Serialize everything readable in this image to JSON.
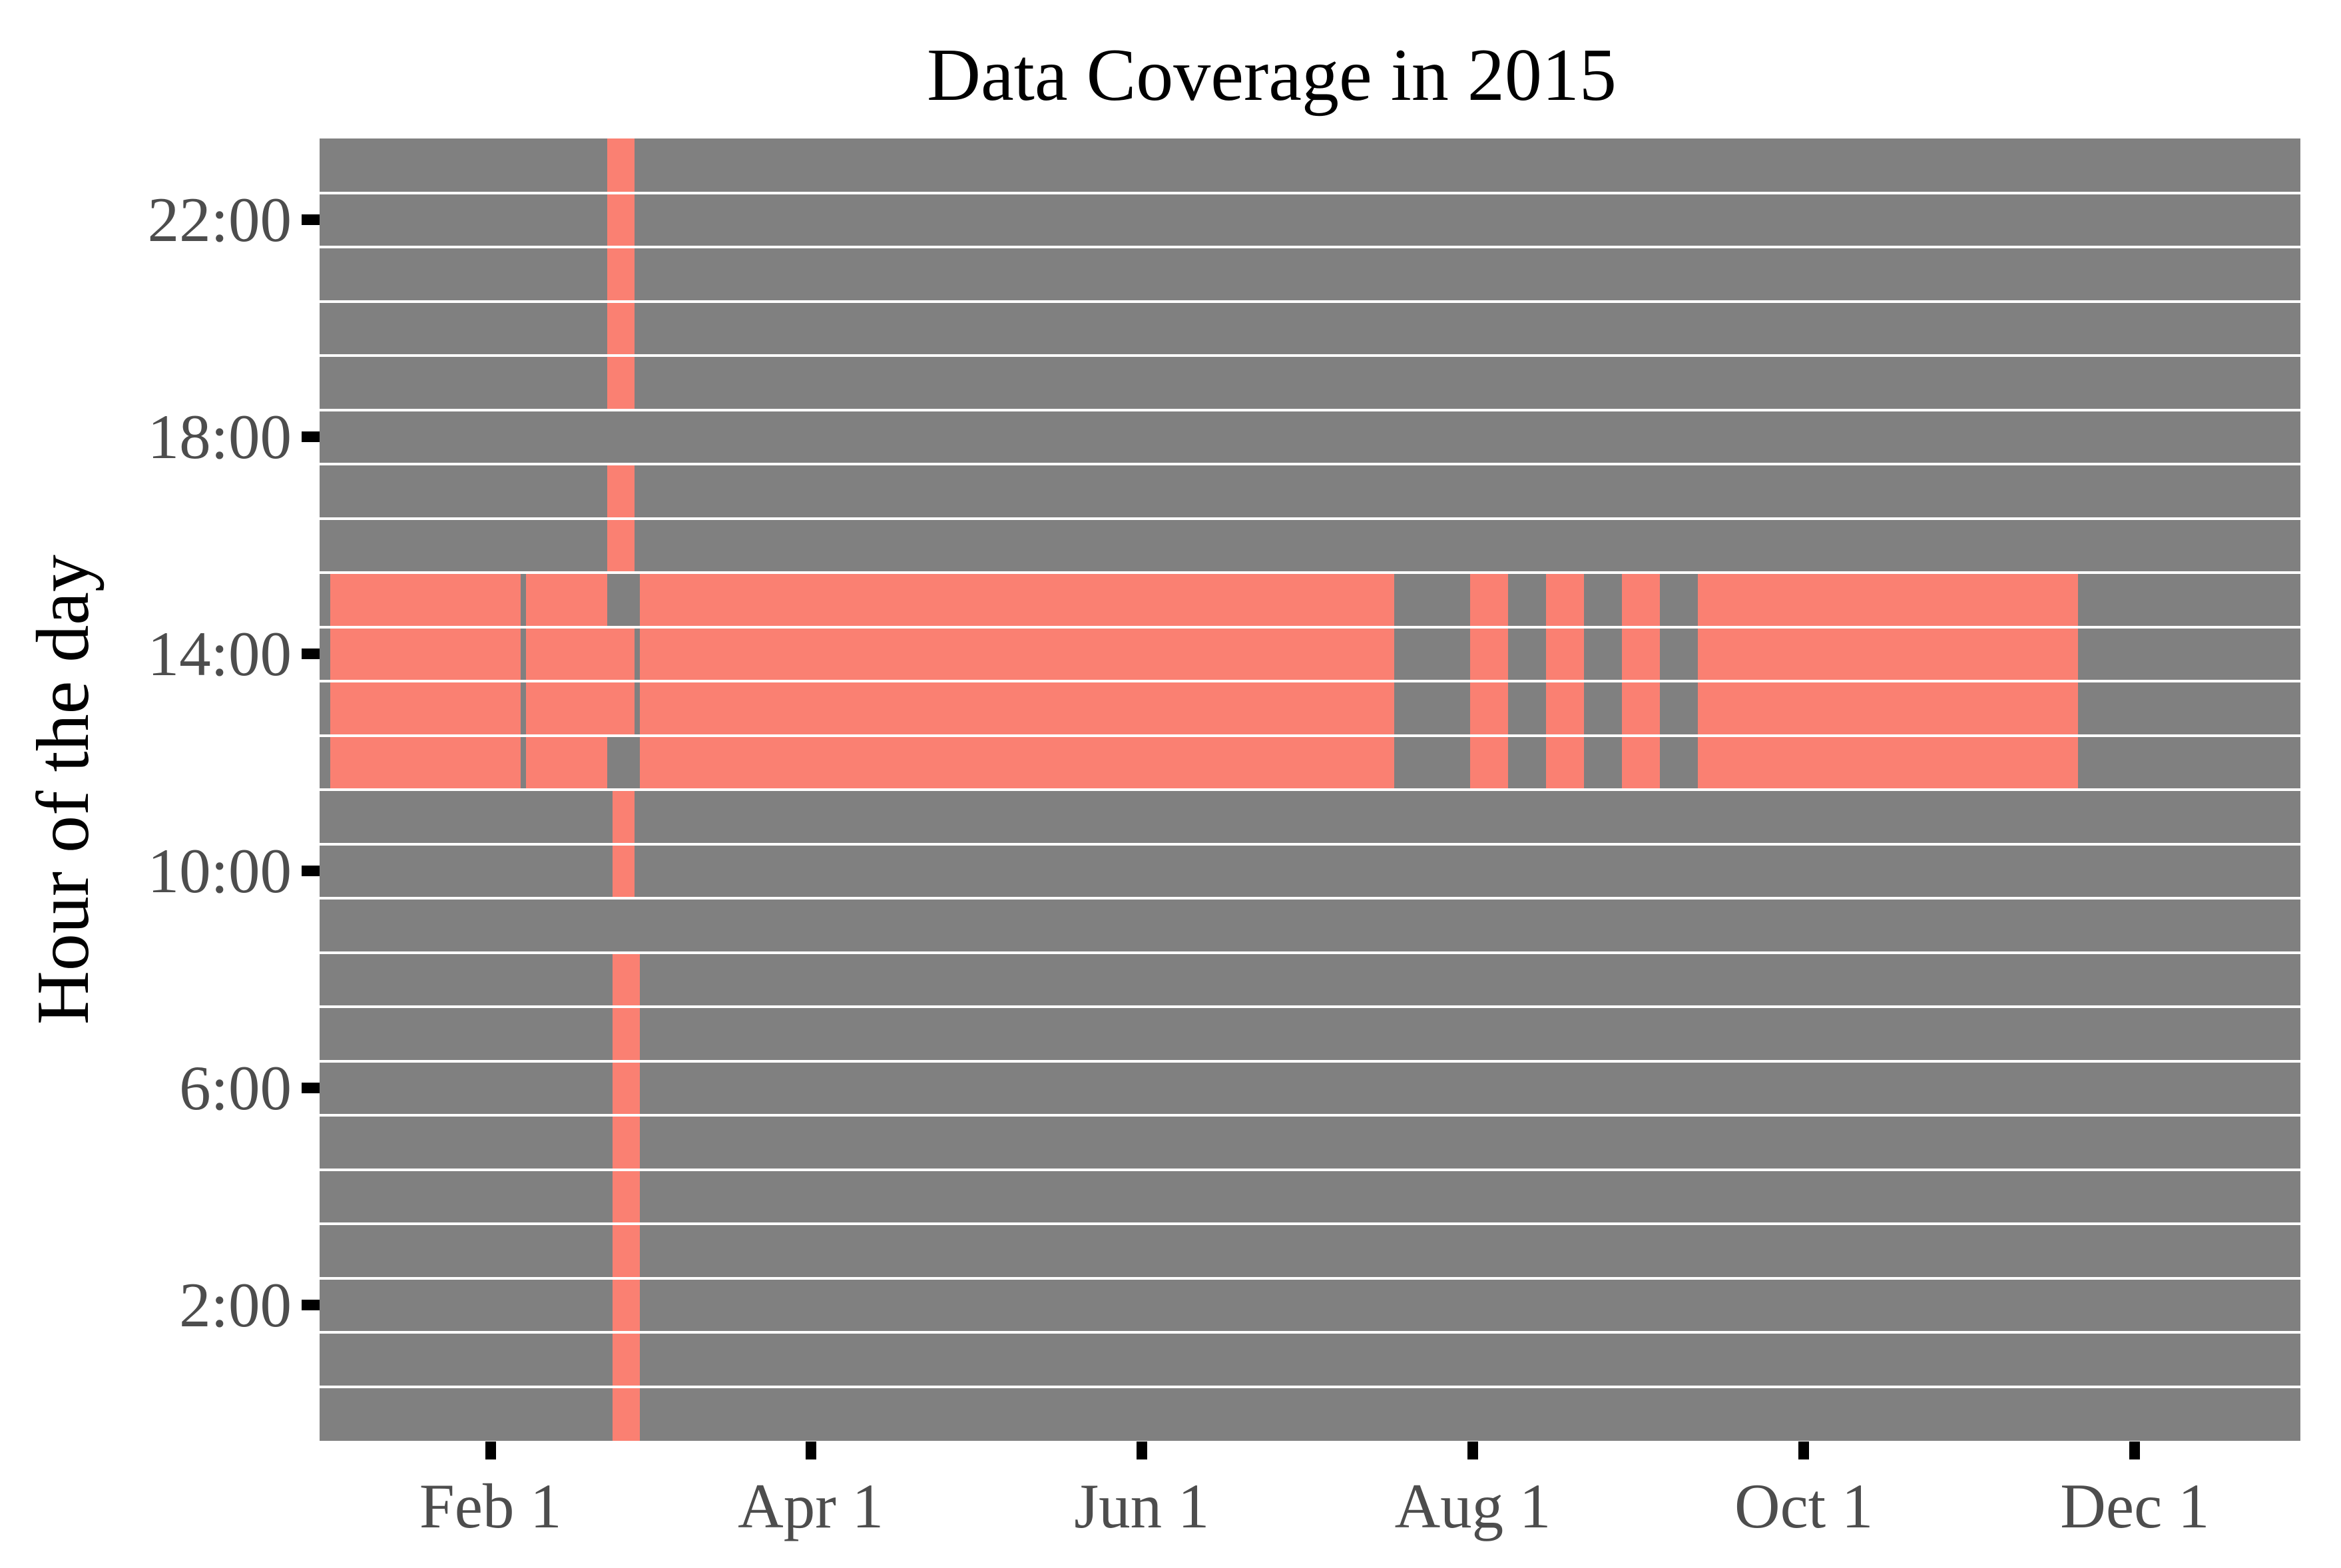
{
  "figure": {
    "title": "Data Coverage in 2015",
    "y_axis_title": "Hour of the day"
  },
  "chart_data": {
    "type": "heatmap",
    "title": "Data Coverage in 2015",
    "xlabel": "",
    "ylabel": "Hour of the day",
    "legend": "none",
    "grid": "horizontal-white-lines-every-hour",
    "x_unit": "day-of-year-2015",
    "x_domain_days": [
      0,
      365
    ],
    "y_unit": "hour-of-day",
    "y_domain_hours": [
      -0.5,
      23.5
    ],
    "x_ticks": [
      {
        "label": "Feb 1",
        "day": 31.5
      },
      {
        "label": "Apr 1",
        "day": 90.5
      },
      {
        "label": "Jun 1",
        "day": 151.5
      },
      {
        "label": "Aug 1",
        "day": 212.5
      },
      {
        "label": "Oct 1",
        "day": 273.5
      },
      {
        "label": "Dec 1",
        "day": 334.5
      }
    ],
    "y_ticks": [
      {
        "label": "22:00",
        "hour": 22
      },
      {
        "label": "18:00",
        "hour": 18
      },
      {
        "label": "14:00",
        "hour": 14
      },
      {
        "label": "10:00",
        "hour": 10
      },
      {
        "label": "6:00",
        "hour": 6
      },
      {
        "label": "2:00",
        "hour": 2
      }
    ],
    "colors": {
      "covered": "#FA8072",
      "not_covered": "#808080",
      "gridline": "#FFFFFF",
      "axis_text": "#4D4D4D",
      "tick_mark": "#000000",
      "title_text": "#000000"
    },
    "coverage_note": "segments are inclusive day-of-year ranges (0 = Jan 1 2015) where data exists (salmon tiles); all other cells are gray",
    "coverage": [
      {
        "hour": 23,
        "segments": [
          [
            53,
            57
          ]
        ]
      },
      {
        "hour": 22,
        "segments": [
          [
            53,
            57
          ]
        ]
      },
      {
        "hour": 21,
        "segments": [
          [
            53,
            57
          ]
        ]
      },
      {
        "hour": 20,
        "segments": [
          [
            53,
            57
          ]
        ]
      },
      {
        "hour": 19,
        "segments": [
          [
            53,
            57
          ]
        ]
      },
      {
        "hour": 18,
        "segments": []
      },
      {
        "hour": 17,
        "segments": [
          [
            53,
            57
          ]
        ]
      },
      {
        "hour": 16,
        "segments": [
          [
            53,
            57
          ]
        ]
      },
      {
        "hour": 15,
        "segments": [
          [
            2,
            36
          ],
          [
            38,
            52
          ],
          [
            59,
            197
          ],
          [
            212,
            218
          ],
          [
            226,
            232
          ],
          [
            240,
            246
          ],
          [
            254,
            323
          ]
        ]
      },
      {
        "hour": 14,
        "segments": [
          [
            2,
            36
          ],
          [
            38,
            57
          ],
          [
            59,
            197
          ],
          [
            212,
            218
          ],
          [
            226,
            232
          ],
          [
            240,
            246
          ],
          [
            254,
            323
          ]
        ]
      },
      {
        "hour": 13,
        "segments": [
          [
            2,
            36
          ],
          [
            38,
            57
          ],
          [
            59,
            197
          ],
          [
            212,
            218
          ],
          [
            226,
            232
          ],
          [
            240,
            246
          ],
          [
            254,
            323
          ]
        ]
      },
      {
        "hour": 12,
        "segments": [
          [
            2,
            36
          ],
          [
            38,
            52
          ],
          [
            59,
            197
          ],
          [
            212,
            218
          ],
          [
            226,
            232
          ],
          [
            240,
            246
          ],
          [
            254,
            323
          ]
        ]
      },
      {
        "hour": 11,
        "segments": [
          [
            54,
            57
          ]
        ]
      },
      {
        "hour": 10,
        "segments": [
          [
            54,
            57
          ]
        ]
      },
      {
        "hour": 9,
        "segments": []
      },
      {
        "hour": 8,
        "segments": [
          [
            54,
            58
          ]
        ]
      },
      {
        "hour": 7,
        "segments": [
          [
            54,
            58
          ]
        ]
      },
      {
        "hour": 6,
        "segments": [
          [
            54,
            58
          ]
        ]
      },
      {
        "hour": 5,
        "segments": [
          [
            54,
            58
          ]
        ]
      },
      {
        "hour": 4,
        "segments": [
          [
            54,
            58
          ]
        ]
      },
      {
        "hour": 3,
        "segments": [
          [
            54,
            58
          ]
        ]
      },
      {
        "hour": 2,
        "segments": [
          [
            54,
            58
          ]
        ]
      },
      {
        "hour": 1,
        "segments": [
          [
            54,
            58
          ]
        ]
      },
      {
        "hour": 0,
        "segments": [
          [
            54,
            58
          ]
        ]
      }
    ]
  }
}
